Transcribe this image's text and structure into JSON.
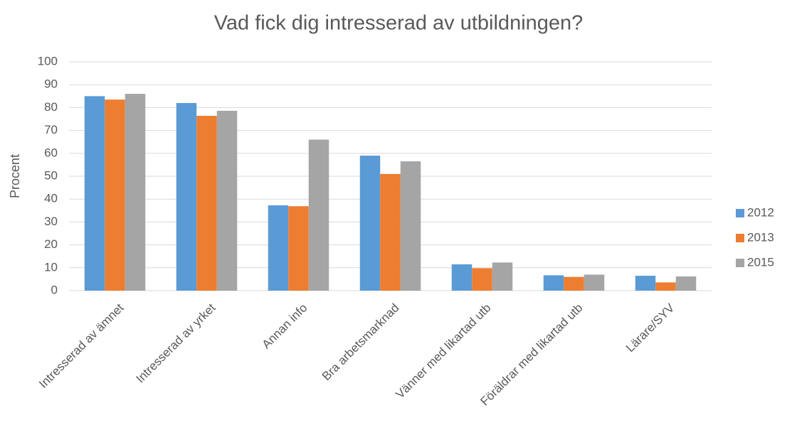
{
  "chart_data": {
    "type": "bar",
    "title": "Vad fick dig intresserad av utbildningen?",
    "y_label": "Procent",
    "categories": [
      "Intresserad av ämnet",
      "Intresserad av yrket",
      "Annan info",
      "Bra arbetsmarknad",
      "Vänner med likartad utb",
      "Föräldrar med likartad utb",
      "Lärare/SYV"
    ],
    "series": [
      {
        "name": "2012",
        "color": "#5b9bd5",
        "values": [
          85,
          82,
          37.3,
          59,
          11.5,
          6.7,
          6.5
        ]
      },
      {
        "name": "2013",
        "color": "#ed7d31",
        "values": [
          83.5,
          76.4,
          36.9,
          51,
          9.8,
          6,
          3.6
        ]
      },
      {
        "name": "2015",
        "color": "#a5a5a5",
        "values": [
          86,
          78.6,
          66,
          56.5,
          12.3,
          7,
          6.2
        ]
      }
    ],
    "ylim": [
      0,
      100
    ],
    "yticks": [
      0,
      10,
      20,
      30,
      40,
      50,
      60,
      70,
      80,
      90,
      100
    ],
    "grid": true,
    "legend": "right"
  }
}
